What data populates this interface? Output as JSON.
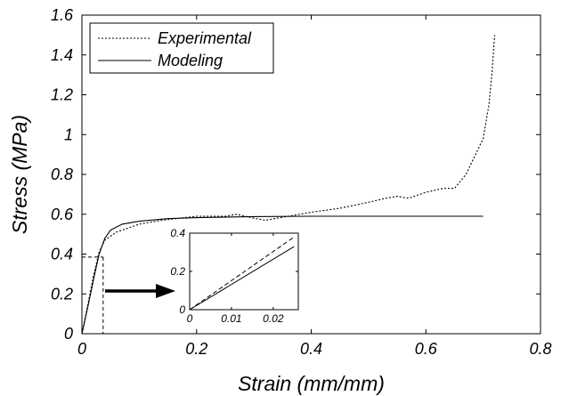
{
  "chart_data": {
    "type": "line",
    "xlabel": "Strain (mm/mm)",
    "ylabel": "Stress (MPa)",
    "xlim": [
      0,
      0.8
    ],
    "ylim": [
      0,
      1.6
    ],
    "xticks": [
      "0",
      "0.2",
      "0.4",
      "0.6",
      "0.8"
    ],
    "yticks": [
      "0",
      "0.2",
      "0.4",
      "0.6",
      "0.8",
      "1",
      "1.2",
      "1.4",
      "1.6"
    ],
    "grid": false,
    "legend": "top-left",
    "series": [
      {
        "name": "Experimental",
        "style": "dotted",
        "x": [
          0,
          0.01,
          0.02,
          0.03,
          0.04,
          0.06,
          0.08,
          0.1,
          0.14,
          0.2,
          0.25,
          0.27,
          0.3,
          0.32,
          0.36,
          0.4,
          0.45,
          0.5,
          0.53,
          0.55,
          0.57,
          0.6,
          0.63,
          0.65,
          0.67,
          0.7,
          0.71,
          0.715,
          0.72
        ],
        "y": [
          0,
          0.14,
          0.29,
          0.41,
          0.47,
          0.51,
          0.53,
          0.55,
          0.57,
          0.59,
          0.59,
          0.6,
          0.58,
          0.57,
          0.59,
          0.61,
          0.63,
          0.66,
          0.68,
          0.69,
          0.68,
          0.71,
          0.73,
          0.73,
          0.8,
          0.98,
          1.15,
          1.3,
          1.5
        ]
      },
      {
        "name": "Modeling",
        "style": "solid",
        "x": [
          0,
          0.01,
          0.02,
          0.03,
          0.04,
          0.05,
          0.07,
          0.1,
          0.15,
          0.2,
          0.3,
          0.4,
          0.5,
          0.6,
          0.7
        ],
        "y": [
          0,
          0.13,
          0.27,
          0.4,
          0.48,
          0.52,
          0.55,
          0.565,
          0.578,
          0.583,
          0.588,
          0.59,
          0.59,
          0.59,
          0.59
        ]
      }
    ],
    "annotation": {
      "x": 0.037,
      "y": 0.385
    },
    "inset": {
      "xlim": [
        0,
        0.026
      ],
      "ylim": [
        0,
        0.4
      ],
      "xticks": [
        "0",
        "0.01",
        "0.02"
      ],
      "yticks": [
        "0",
        "0.2",
        "0.4"
      ],
      "series": [
        {
          "name": "Experimental",
          "style": "dashed",
          "x": [
            0,
            0.025
          ],
          "y": [
            0,
            0.38
          ]
        },
        {
          "name": "Modeling",
          "style": "solid",
          "x": [
            0,
            0.025
          ],
          "y": [
            0,
            0.33
          ]
        }
      ]
    }
  }
}
